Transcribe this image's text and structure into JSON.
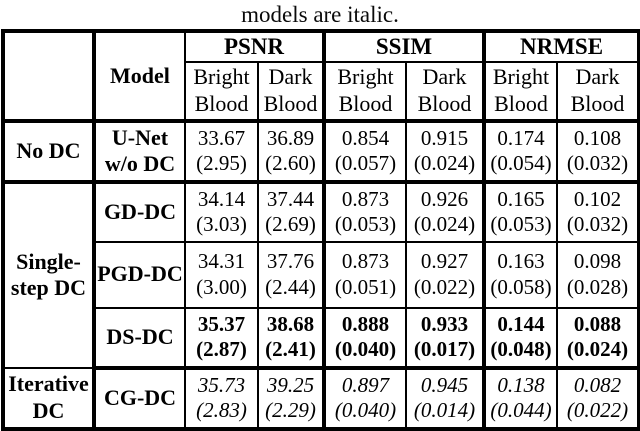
{
  "caption": "models are italic.",
  "table": {
    "model_header": "Model",
    "metrics": {
      "psnr": "PSNR",
      "ssim": "SSIM",
      "nrmse": "NRMSE"
    },
    "sub_headers": {
      "bright": "Bright Blood",
      "dark": "Dark Blood"
    },
    "groups": {
      "no_dc": "No DC",
      "single_step": "Single-step DC",
      "iterative": "Iterative DC"
    },
    "rows": [
      {
        "group": "No DC",
        "model": "U-Net w/o DC",
        "emphasis": "normal",
        "values": [
          {
            "mean": "33.67",
            "std": "(2.95)"
          },
          {
            "mean": "36.89",
            "std": "(2.60)"
          },
          {
            "mean": "0.854",
            "std": "(0.057)"
          },
          {
            "mean": "0.915",
            "std": "(0.024)"
          },
          {
            "mean": "0.174",
            "std": "(0.054)"
          },
          {
            "mean": "0.108",
            "std": "(0.032)"
          }
        ]
      },
      {
        "group": "Single-step DC",
        "model": "GD-DC",
        "emphasis": "normal",
        "values": [
          {
            "mean": "34.14",
            "std": "(3.03)"
          },
          {
            "mean": "37.44",
            "std": "(2.69)"
          },
          {
            "mean": "0.873",
            "std": "(0.053)"
          },
          {
            "mean": "0.926",
            "std": "(0.024)"
          },
          {
            "mean": "0.165",
            "std": "(0.053)"
          },
          {
            "mean": "0.102",
            "std": "(0.032)"
          }
        ]
      },
      {
        "group": "Single-step DC",
        "model": "PGD-DC",
        "emphasis": "normal",
        "values": [
          {
            "mean": "34.31",
            "std": "(3.00)"
          },
          {
            "mean": "37.76",
            "std": "(2.44)"
          },
          {
            "mean": "0.873",
            "std": "(0.051)"
          },
          {
            "mean": "0.927",
            "std": "(0.022)"
          },
          {
            "mean": "0.163",
            "std": "(0.058)"
          },
          {
            "mean": "0.098",
            "std": "(0.028)"
          }
        ]
      },
      {
        "group": "Single-step DC",
        "model": "DS-DC",
        "emphasis": "bold",
        "values": [
          {
            "mean": "35.37",
            "std": "(2.87)"
          },
          {
            "mean": "38.68",
            "std": "(2.41)"
          },
          {
            "mean": "0.888",
            "std": "(0.040)"
          },
          {
            "mean": "0.933",
            "std": "(0.017)"
          },
          {
            "mean": "0.144",
            "std": "(0.048)"
          },
          {
            "mean": "0.088",
            "std": "(0.024)"
          }
        ]
      },
      {
        "group": "Iterative DC",
        "model": "CG-DC",
        "emphasis": "italic",
        "values": [
          {
            "mean": "35.73",
            "std": "(2.83)"
          },
          {
            "mean": "39.25",
            "std": "(2.29)"
          },
          {
            "mean": "0.897",
            "std": "(0.040)"
          },
          {
            "mean": "0.945",
            "std": "(0.014)"
          },
          {
            "mean": "0.138",
            "std": "(0.044)"
          },
          {
            "mean": "0.082",
            "std": "(0.022)"
          }
        ]
      }
    ]
  }
}
